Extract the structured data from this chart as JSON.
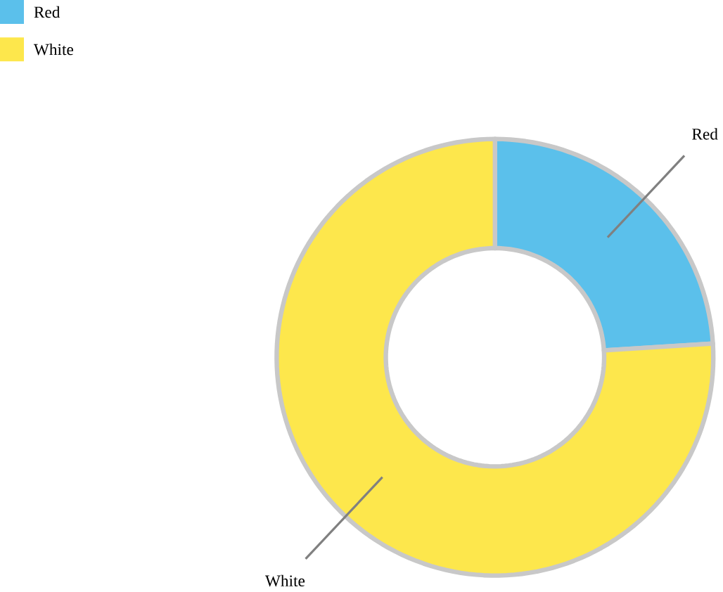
{
  "chart_data": {
    "type": "donut",
    "categories": [
      "Red",
      "White"
    ],
    "values": [
      24,
      76
    ],
    "colors": [
      "#5bc0eb",
      "#fde74c"
    ],
    "legend": "top left"
  }
}
